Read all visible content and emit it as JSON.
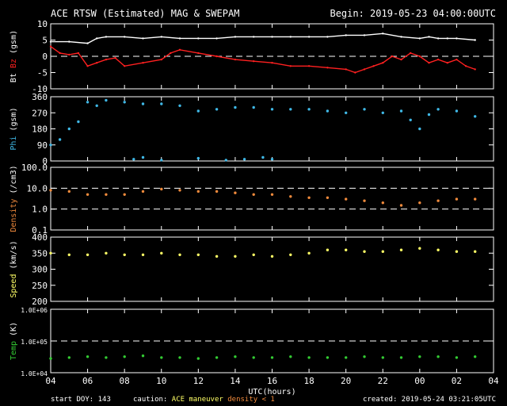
{
  "header": {
    "title": "ACE RTSW (Estimated) MAG & SWEPAM",
    "begin": "Begin: 2019-05-23 04:00:00UTC"
  },
  "footer": {
    "start_doy": "start DOY: 143",
    "caution_label": "caution:",
    "caution_maneuver": "ACE maneuver",
    "caution_density": "density < 1",
    "created": "created: 2019-05-24 03:21:05UTC"
  },
  "colors": {
    "background": "#000000",
    "axes": "#ffffff",
    "bt": "#ffffff",
    "bz": "#ff2020",
    "phi": "#3fb8e6",
    "density": "#f08a3c",
    "speed": "#ffff66",
    "temp": "#33cc33",
    "caution_maneuver": "#ffff66",
    "caution_density": "#f08a3c"
  },
  "chart_data": {
    "type": "line",
    "x_axis": {
      "label": "UTC(hours)",
      "range_hours_from_start": [
        0,
        24
      ],
      "tick_labels": [
        "04",
        "06",
        "08",
        "10",
        "12",
        "14",
        "16",
        "18",
        "20",
        "22",
        "00",
        "02",
        "04"
      ]
    },
    "panels": [
      {
        "ylabel_parts": [
          {
            "text": "Bt",
            "color": "#ffffff"
          },
          {
            "text": "Bz",
            "color": "#ff2020"
          },
          {
            "text": "(gsm)",
            "color": "#ffffff"
          }
        ],
        "scale": "linear",
        "ylim": [
          -10,
          10
        ],
        "ytick_values": [
          -10,
          -5,
          0,
          5,
          10
        ],
        "ytick_labels": [
          "-10",
          "-5",
          "0",
          "5",
          "10"
        ],
        "dashed_lines": [
          0
        ],
        "series": [
          {
            "name": "Bt",
            "color": "#ffffff",
            "style": "line",
            "x": [
              0,
              1,
              2,
              2.5,
              3,
              4,
              5,
              6,
              7,
              8,
              9,
              10,
              11,
              12,
              13,
              14,
              15,
              16,
              17,
              18,
              19,
              20,
              20.5,
              21,
              21.5,
              22,
              23
            ],
            "y": [
              4.5,
              4.5,
              4,
              5.5,
              6,
              6,
              5.5,
              6,
              5.5,
              5.5,
              5.5,
              6,
              6,
              6,
              6,
              6,
              6,
              6.5,
              6.5,
              7,
              6,
              5.5,
              6,
              5.5,
              5.5,
              5.5,
              5
            ]
          },
          {
            "name": "Bz",
            "color": "#ff2020",
            "style": "line",
            "x": [
              0,
              0.5,
              1,
              1.5,
              2,
              2.5,
              3,
              3.5,
              4,
              5,
              6,
              6.5,
              7,
              8,
              9,
              10,
              11,
              12,
              13,
              14,
              15,
              16,
              16.5,
              17,
              17.5,
              18,
              18.5,
              19,
              19.5,
              20,
              20.5,
              21,
              21.5,
              22,
              22.5,
              23
            ],
            "y": [
              3,
              1,
              0.5,
              1,
              -3,
              -2,
              -1,
              -0.5,
              -3,
              -2,
              -1,
              1,
              2,
              1,
              0,
              -1,
              -1.5,
              -2,
              -3,
              -3,
              -3.5,
              -4,
              -5,
              -4,
              -3,
              -2,
              0,
              -1,
              1,
              0,
              -2,
              -1,
              -2,
              -1,
              -3,
              -4
            ]
          }
        ]
      },
      {
        "ylabel_parts": [
          {
            "text": "Phi",
            "color": "#3fb8e6"
          },
          {
            "text": "(gsm)",
            "color": "#ffffff"
          }
        ],
        "scale": "linear",
        "ylim": [
          0,
          360
        ],
        "ytick_values": [
          0,
          90,
          180,
          270,
          360
        ],
        "ytick_labels": [
          "0",
          "90",
          "180",
          "270",
          "360"
        ],
        "dashed_lines": [],
        "series": [
          {
            "name": "Phi",
            "color": "#3fb8e6",
            "style": "points",
            "x": [
              0,
              0.5,
              1,
              1.5,
              2,
              2.5,
              3,
              4,
              5,
              6,
              7,
              8,
              9,
              10,
              11,
              12,
              13,
              14,
              15,
              16,
              17,
              18,
              19,
              19.5,
              20,
              20.5,
              21,
              22,
              23
            ],
            "y": [
              90,
              120,
              180,
              220,
              330,
              310,
              340,
              330,
              320,
              320,
              310,
              280,
              290,
              300,
              300,
              290,
              290,
              290,
              280,
              270,
              290,
              270,
              280,
              230,
              180,
              260,
              290,
              280,
              250
            ]
          },
          {
            "name": "Phi-low",
            "color": "#3fb8e6",
            "style": "points",
            "x": [
              4.5,
              5,
              6,
              8,
              9.5,
              10.5,
              11.5,
              12
            ],
            "y": [
              10,
              20,
              5,
              15,
              5,
              10,
              20,
              10
            ]
          }
        ]
      },
      {
        "ylabel_parts": [
          {
            "text": "Density",
            "color": "#f08a3c"
          },
          {
            "text": "(/cm3)",
            "color": "#ffffff"
          }
        ],
        "scale": "log",
        "ylim": [
          0.1,
          100
        ],
        "ytick_values": [
          0.1,
          1,
          10,
          100
        ],
        "ytick_labels": [
          "0.1",
          "1.0",
          "10.0",
          "100.0"
        ],
        "dashed_lines": [
          10,
          1
        ],
        "series": [
          {
            "name": "Density",
            "color": "#f08a3c",
            "style": "points",
            "x": [
              0,
              1,
              2,
              3,
              4,
              5,
              6,
              7,
              8,
              9,
              10,
              11,
              12,
              13,
              14,
              15,
              16,
              17,
              18,
              19,
              20,
              21,
              22,
              23
            ],
            "y": [
              8,
              7,
              5,
              5,
              5,
              7,
              9,
              8,
              7,
              7,
              6,
              5,
              5,
              4,
              3.5,
              3.5,
              3,
              2.5,
              2,
              1.5,
              2,
              2.5,
              3,
              3
            ]
          }
        ]
      },
      {
        "ylabel_parts": [
          {
            "text": "Speed",
            "color": "#ffff66"
          },
          {
            "text": "(km/s)",
            "color": "#ffffff"
          }
        ],
        "scale": "linear",
        "ylim": [
          200,
          400
        ],
        "ytick_values": [
          200,
          250,
          300,
          350,
          400
        ],
        "ytick_labels": [
          "200",
          "250",
          "300",
          "350",
          "400"
        ],
        "dashed_lines": [],
        "series": [
          {
            "name": "Speed",
            "color": "#ffff66",
            "style": "points",
            "x": [
              0,
              1,
              2,
              3,
              4,
              5,
              6,
              7,
              8,
              9,
              10,
              11,
              12,
              13,
              14,
              15,
              16,
              17,
              18,
              19,
              20,
              21,
              22,
              23
            ],
            "y": [
              350,
              345,
              345,
              350,
              345,
              345,
              350,
              345,
              345,
              340,
              340,
              345,
              340,
              345,
              350,
              360,
              360,
              355,
              355,
              360,
              365,
              360,
              355,
              355
            ]
          }
        ]
      },
      {
        "ylabel_parts": [
          {
            "text": "Temp",
            "color": "#33cc33"
          },
          {
            "text": "(K)",
            "color": "#ffffff"
          }
        ],
        "scale": "log",
        "ylim": [
          10000,
          1000000
        ],
        "ytick_values": [
          10000,
          100000,
          1000000
        ],
        "ytick_labels": [
          "1.0E+04",
          "1.0E+05",
          "1.0E+06"
        ],
        "dashed_lines": [
          100000
        ],
        "series": [
          {
            "name": "Temp",
            "color": "#33cc33",
            "style": "points",
            "x": [
              0,
              1,
              2,
              3,
              4,
              5,
              6,
              7,
              8,
              9,
              10,
              11,
              12,
              13,
              14,
              15,
              16,
              17,
              18,
              19,
              20,
              21,
              22,
              23
            ],
            "y": [
              28000,
              30000,
              32000,
              30000,
              32000,
              34000,
              30000,
              30000,
              28000,
              30000,
              32000,
              30000,
              30000,
              32000,
              30000,
              30000,
              30000,
              32000,
              30000,
              30000,
              32000,
              32000,
              30000,
              32000
            ]
          }
        ]
      }
    ]
  }
}
